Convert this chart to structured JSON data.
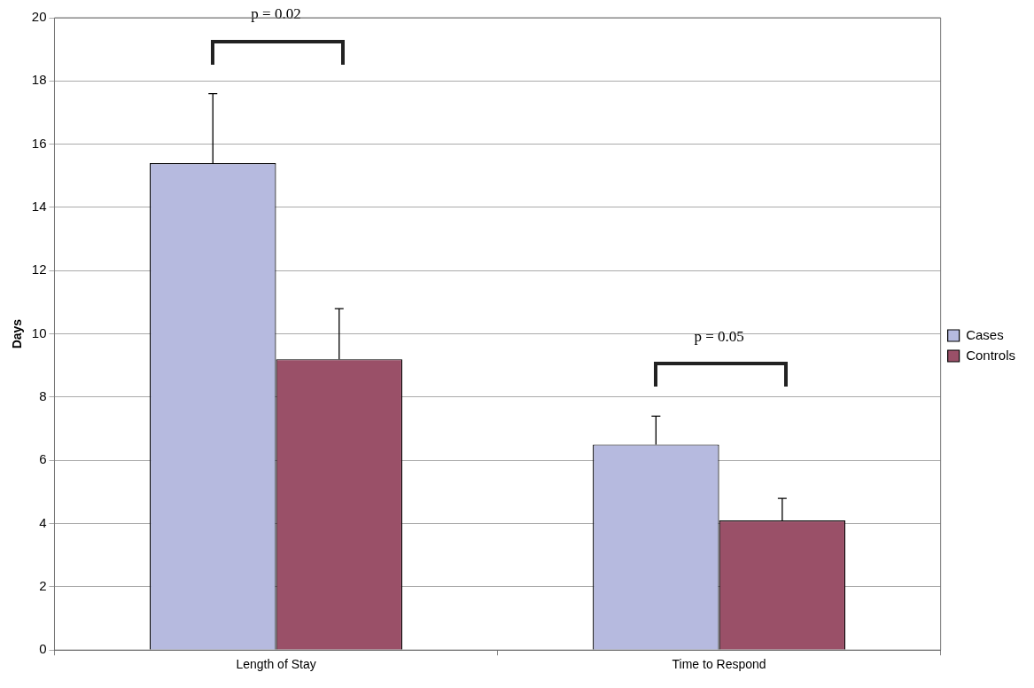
{
  "chart_data": {
    "type": "bar",
    "ylabel": "Days",
    "categories": [
      "Length of Stay",
      "Time to Respond"
    ],
    "series": [
      {
        "name": "Cases",
        "color": "#b6badf",
        "values": [
          15.4,
          6.5
        ],
        "errors": [
          [
            15.4,
            17.6
          ],
          [
            6.5,
            7.4
          ]
        ]
      },
      {
        "name": "Controls",
        "color": "#9a5068",
        "values": [
          9.2,
          4.1
        ],
        "errors": [
          [
            9.2,
            10.8
          ],
          [
            4.1,
            4.8
          ]
        ]
      }
    ],
    "ylim": [
      0,
      20
    ],
    "yticks": [
      0,
      2,
      4,
      6,
      8,
      10,
      12,
      14,
      16,
      18,
      20
    ],
    "grid": "y",
    "legend": "right",
    "annotations": [
      "p = 0.02",
      "p = 0.05"
    ]
  }
}
